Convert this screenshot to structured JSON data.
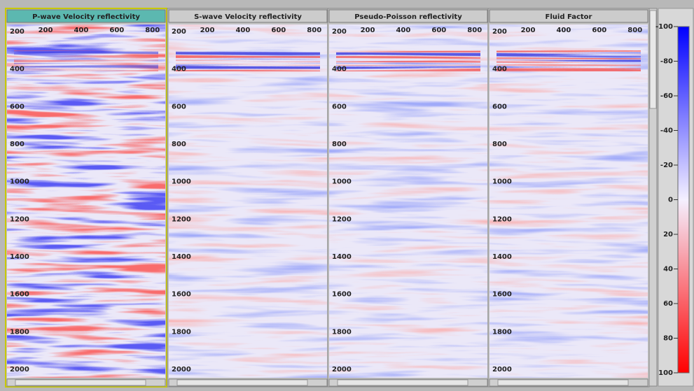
{
  "panels": [
    {
      "title": "P-wave Velocity reflectivity",
      "active": true
    },
    {
      "title": "S-wave Velocity reflectivity",
      "active": false
    },
    {
      "title": "Pseudo-Poisson reflectivity",
      "active": false
    },
    {
      "title": "Fluid Factor",
      "active": false
    }
  ],
  "x_ticks": [
    200,
    400,
    600,
    800
  ],
  "y_ticks": [
    200,
    400,
    600,
    800,
    1000,
    1200,
    1400,
    1600,
    1800,
    2000
  ],
  "colorbar_ticks": [
    -100,
    -80,
    -60,
    -40,
    -20,
    0,
    20,
    40,
    60,
    80,
    100
  ]
}
